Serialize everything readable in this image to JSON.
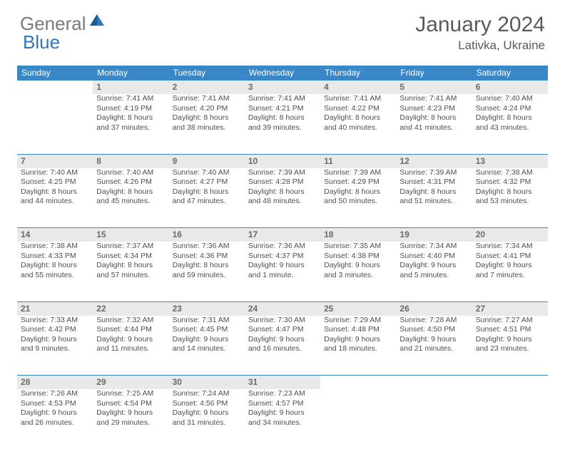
{
  "logo": {
    "word1": "General",
    "word2": "Blue"
  },
  "title": "January 2024",
  "location": "Lativka, Ukraine",
  "colors": {
    "header_bg": "#3a87c8",
    "header_text": "#ffffff",
    "daynum_bg": "#e9e9e9",
    "border": "#3a87c8",
    "body_text": "#4f4f4f",
    "logo_gray": "#7a7a7a",
    "logo_blue": "#2f78b9"
  },
  "weekdays": [
    "Sunday",
    "Monday",
    "Tuesday",
    "Wednesday",
    "Thursday",
    "Friday",
    "Saturday"
  ],
  "weeks": [
    {
      "nums": [
        "",
        "1",
        "2",
        "3",
        "4",
        "5",
        "6"
      ],
      "cells": [
        [],
        [
          "Sunrise: 7:41 AM",
          "Sunset: 4:19 PM",
          "Daylight: 8 hours",
          "and 37 minutes."
        ],
        [
          "Sunrise: 7:41 AM",
          "Sunset: 4:20 PM",
          "Daylight: 8 hours",
          "and 38 minutes."
        ],
        [
          "Sunrise: 7:41 AM",
          "Sunset: 4:21 PM",
          "Daylight: 8 hours",
          "and 39 minutes."
        ],
        [
          "Sunrise: 7:41 AM",
          "Sunset: 4:22 PM",
          "Daylight: 8 hours",
          "and 40 minutes."
        ],
        [
          "Sunrise: 7:41 AM",
          "Sunset: 4:23 PM",
          "Daylight: 8 hours",
          "and 41 minutes."
        ],
        [
          "Sunrise: 7:40 AM",
          "Sunset: 4:24 PM",
          "Daylight: 8 hours",
          "and 43 minutes."
        ]
      ]
    },
    {
      "nums": [
        "7",
        "8",
        "9",
        "10",
        "11",
        "12",
        "13"
      ],
      "cells": [
        [
          "Sunrise: 7:40 AM",
          "Sunset: 4:25 PM",
          "Daylight: 8 hours",
          "and 44 minutes."
        ],
        [
          "Sunrise: 7:40 AM",
          "Sunset: 4:26 PM",
          "Daylight: 8 hours",
          "and 45 minutes."
        ],
        [
          "Sunrise: 7:40 AM",
          "Sunset: 4:27 PM",
          "Daylight: 8 hours",
          "and 47 minutes."
        ],
        [
          "Sunrise: 7:39 AM",
          "Sunset: 4:28 PM",
          "Daylight: 8 hours",
          "and 48 minutes."
        ],
        [
          "Sunrise: 7:39 AM",
          "Sunset: 4:29 PM",
          "Daylight: 8 hours",
          "and 50 minutes."
        ],
        [
          "Sunrise: 7:39 AM",
          "Sunset: 4:31 PM",
          "Daylight: 8 hours",
          "and 51 minutes."
        ],
        [
          "Sunrise: 7:38 AM",
          "Sunset: 4:32 PM",
          "Daylight: 8 hours",
          "and 53 minutes."
        ]
      ]
    },
    {
      "nums": [
        "14",
        "15",
        "16",
        "17",
        "18",
        "19",
        "20"
      ],
      "cells": [
        [
          "Sunrise: 7:38 AM",
          "Sunset: 4:33 PM",
          "Daylight: 8 hours",
          "and 55 minutes."
        ],
        [
          "Sunrise: 7:37 AM",
          "Sunset: 4:34 PM",
          "Daylight: 8 hours",
          "and 57 minutes."
        ],
        [
          "Sunrise: 7:36 AM",
          "Sunset: 4:36 PM",
          "Daylight: 8 hours",
          "and 59 minutes."
        ],
        [
          "Sunrise: 7:36 AM",
          "Sunset: 4:37 PM",
          "Daylight: 9 hours",
          "and 1 minute."
        ],
        [
          "Sunrise: 7:35 AM",
          "Sunset: 4:38 PM",
          "Daylight: 9 hours",
          "and 3 minutes."
        ],
        [
          "Sunrise: 7:34 AM",
          "Sunset: 4:40 PM",
          "Daylight: 9 hours",
          "and 5 minutes."
        ],
        [
          "Sunrise: 7:34 AM",
          "Sunset: 4:41 PM",
          "Daylight: 9 hours",
          "and 7 minutes."
        ]
      ]
    },
    {
      "nums": [
        "21",
        "22",
        "23",
        "24",
        "25",
        "26",
        "27"
      ],
      "cells": [
        [
          "Sunrise: 7:33 AM",
          "Sunset: 4:42 PM",
          "Daylight: 9 hours",
          "and 9 minutes."
        ],
        [
          "Sunrise: 7:32 AM",
          "Sunset: 4:44 PM",
          "Daylight: 9 hours",
          "and 11 minutes."
        ],
        [
          "Sunrise: 7:31 AM",
          "Sunset: 4:45 PM",
          "Daylight: 9 hours",
          "and 14 minutes."
        ],
        [
          "Sunrise: 7:30 AM",
          "Sunset: 4:47 PM",
          "Daylight: 9 hours",
          "and 16 minutes."
        ],
        [
          "Sunrise: 7:29 AM",
          "Sunset: 4:48 PM",
          "Daylight: 9 hours",
          "and 18 minutes."
        ],
        [
          "Sunrise: 7:28 AM",
          "Sunset: 4:50 PM",
          "Daylight: 9 hours",
          "and 21 minutes."
        ],
        [
          "Sunrise: 7:27 AM",
          "Sunset: 4:51 PM",
          "Daylight: 9 hours",
          "and 23 minutes."
        ]
      ]
    },
    {
      "nums": [
        "28",
        "29",
        "30",
        "31",
        "",
        "",
        ""
      ],
      "cells": [
        [
          "Sunrise: 7:26 AM",
          "Sunset: 4:53 PM",
          "Daylight: 9 hours",
          "and 26 minutes."
        ],
        [
          "Sunrise: 7:25 AM",
          "Sunset: 4:54 PM",
          "Daylight: 9 hours",
          "and 29 minutes."
        ],
        [
          "Sunrise: 7:24 AM",
          "Sunset: 4:56 PM",
          "Daylight: 9 hours",
          "and 31 minutes."
        ],
        [
          "Sunrise: 7:23 AM",
          "Sunset: 4:57 PM",
          "Daylight: 9 hours",
          "and 34 minutes."
        ],
        [],
        [],
        []
      ]
    }
  ]
}
